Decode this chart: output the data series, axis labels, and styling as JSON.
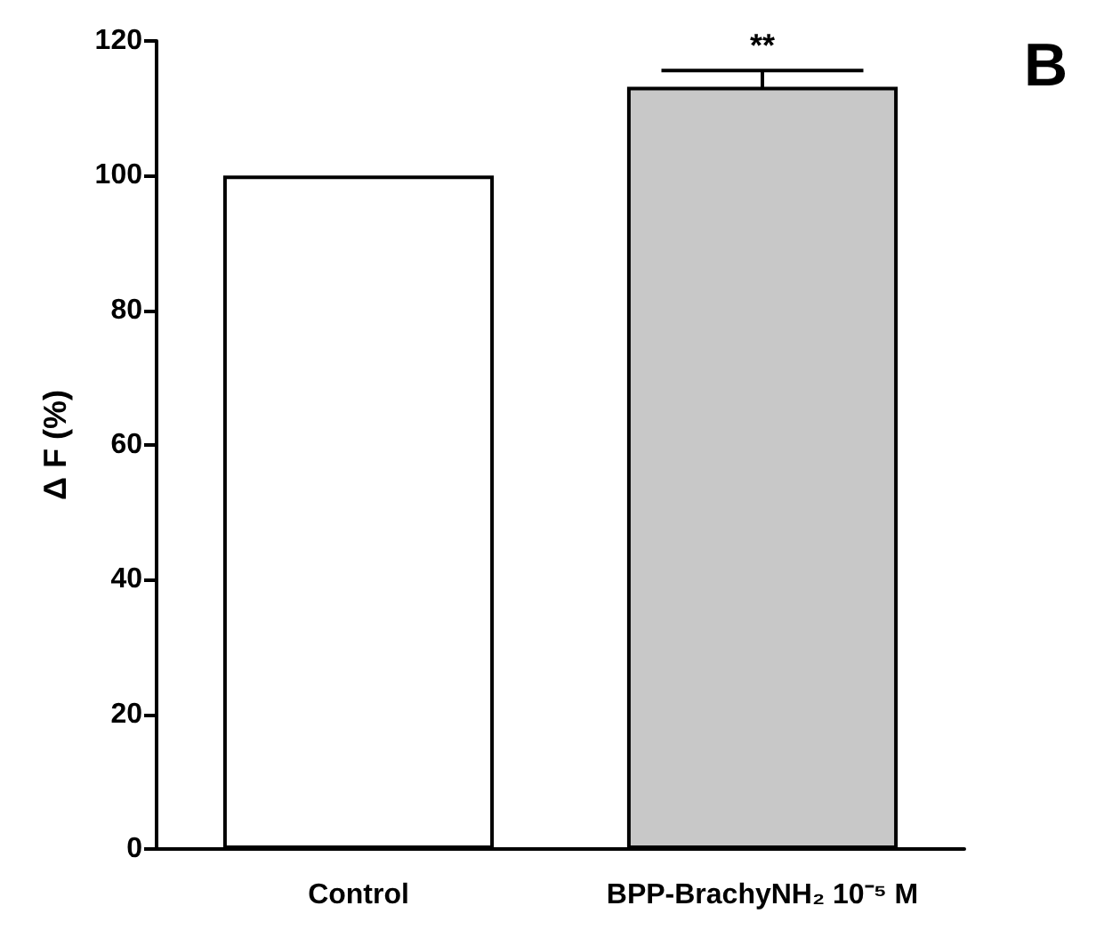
{
  "chart_data": {
    "type": "bar",
    "ylabel": "Δ F (%)",
    "categories": [
      "Control",
      "BPP-BrachyNH₂ 10⁻⁵ M"
    ],
    "values": [
      100,
      113.2
    ],
    "colors": [
      "#ffffff",
      "#c8c8c8"
    ],
    "errors": [
      null,
      2.4
    ],
    "ylim": [
      0,
      120
    ],
    "yticks": [
      0,
      20,
      40,
      60,
      80,
      100,
      120
    ],
    "grid": false,
    "annotations": [
      "B",
      "**"
    ]
  }
}
